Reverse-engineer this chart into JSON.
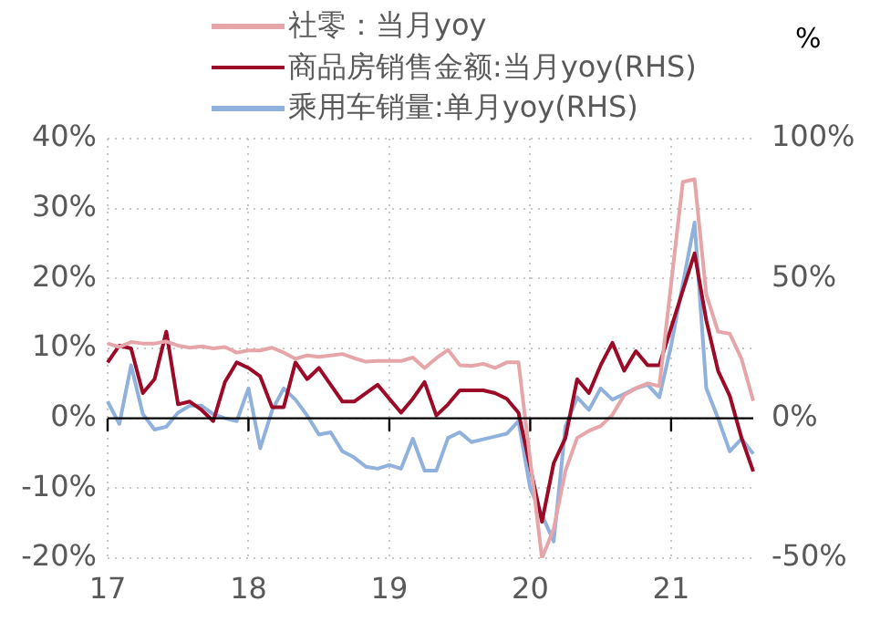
{
  "chart_data": {
    "type": "line",
    "categories": [
      "17",
      null,
      null,
      null,
      null,
      null,
      null,
      null,
      null,
      null,
      null,
      null,
      "18",
      null,
      null,
      null,
      null,
      null,
      null,
      null,
      null,
      null,
      null,
      null,
      "19",
      null,
      null,
      null,
      null,
      null,
      null,
      null,
      null,
      null,
      null,
      null,
      "20",
      null,
      null,
      null,
      null,
      null,
      null,
      null,
      null,
      null,
      null,
      null,
      "21",
      null,
      null,
      null,
      null,
      null,
      null,
      null
    ],
    "series": [
      {
        "name": "社零：当月yoy",
        "color": "#e6a5a8",
        "values": [
          10.7,
          10.2,
          10.9,
          10.7,
          10.7,
          11.0,
          10.4,
          10.1,
          10.3,
          10.0,
          10.2,
          9.4,
          9.7,
          9.7,
          10.1,
          9.4,
          8.5,
          9.0,
          8.8,
          9.0,
          9.2,
          8.6,
          8.1,
          8.2,
          8.2,
          8.2,
          8.7,
          7.2,
          8.6,
          9.8,
          7.6,
          7.5,
          7.8,
          7.2,
          8.0,
          8.0,
          null,
          -20,
          -15.8,
          -7.5,
          -2.8,
          -1.8,
          -1.1,
          0.5,
          3.3,
          4.3,
          5.0,
          4.6,
          null,
          33.8,
          34.2,
          17.7,
          12.4,
          12.1,
          8.5,
          2.5
        ]
      },
      {
        "name": "商品房销售金额:当月yoy(RHS)",
        "color": "#9b0a26",
        "axis": "y2",
        "values": [
          20,
          26,
          25,
          9,
          14,
          31,
          5,
          6,
          3,
          -1,
          13,
          20,
          18,
          15,
          4,
          4,
          20,
          14,
          18,
          12,
          6,
          6,
          9,
          12,
          7,
          2,
          7,
          13,
          1,
          5,
          10,
          10,
          10,
          9,
          7,
          2,
          null,
          -37,
          -16,
          -7,
          14,
          9,
          19,
          27,
          17,
          24,
          19,
          19,
          null,
          null,
          59,
          35,
          17,
          8,
          -7,
          -19
        ]
      },
      {
        "name": "乘用车销量:单月yoy(RHS)",
        "color": "#8fb1dc",
        "axis": "y2",
        "values": [
          6,
          -2,
          19,
          1.5,
          -4,
          -3,
          2,
          4.5,
          4.5,
          1.5,
          0,
          -1,
          10.7,
          -10.7,
          2.7,
          10.7,
          6.7,
          1,
          -5.8,
          -5,
          -11.8,
          -14,
          -17.3,
          -18,
          -16.7,
          -18,
          -7.3,
          -18.7,
          -18.7,
          -7,
          -5,
          -8.5,
          -7.5,
          -6.5,
          -5.5,
          -1,
          -25,
          null,
          -44,
          -3,
          7.5,
          3,
          10.7,
          6.7,
          8.7,
          10.7,
          12,
          7.5,
          26,
          null,
          70,
          10.7,
          0,
          -11.8,
          -7.3,
          -12.7
        ]
      }
    ],
    "ylim": [
      -20,
      40
    ],
    "yticks": [
      {
        "value": -20,
        "label": "-20%"
      },
      {
        "value": -10,
        "label": "-10%"
      },
      {
        "value": 0,
        "label": "0%"
      },
      {
        "value": 10,
        "label": "10%"
      },
      {
        "value": 20,
        "label": "20%"
      },
      {
        "value": 30,
        "label": "30%"
      },
      {
        "value": 40,
        "label": "40%"
      }
    ],
    "y2lim": [
      -50,
      100
    ],
    "y2ticks": [
      {
        "value": -50,
        "label": "-50%"
      },
      {
        "value": 0,
        "label": "0%"
      },
      {
        "value": 50,
        "label": "50%"
      },
      {
        "value": 100,
        "label": "100%"
      }
    ],
    "y2label": "%",
    "grid": true,
    "legend": "top"
  }
}
